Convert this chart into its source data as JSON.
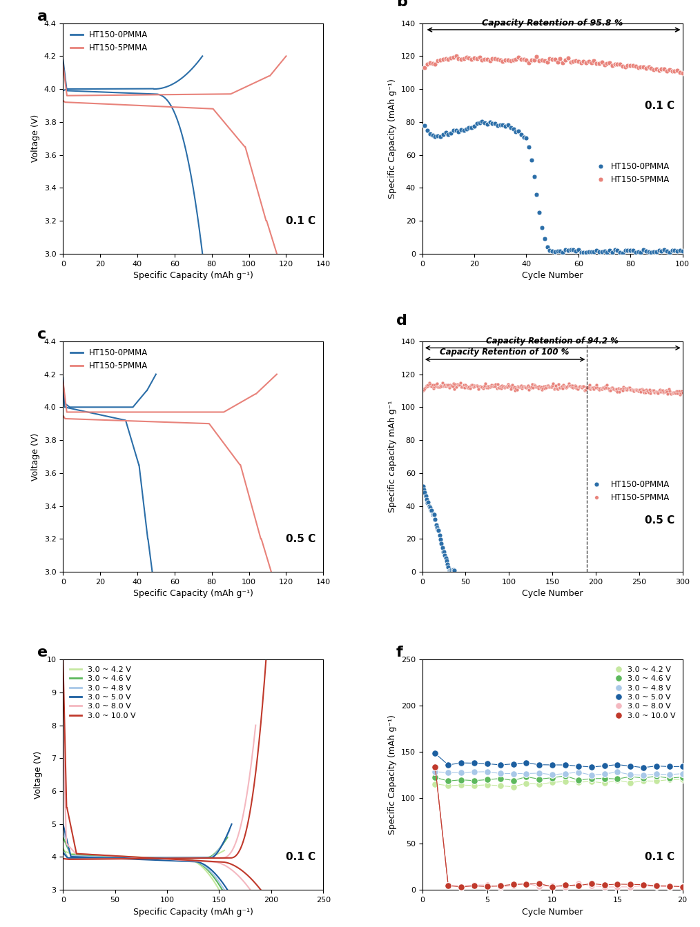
{
  "panel_a": {
    "title": "a",
    "xlabel": "Specific Capacity (mAh g⁻¹)",
    "ylabel": "Voltage (V)",
    "annotation": "0.1 C",
    "ylim": [
      3.0,
      4.4
    ],
    "xlim": [
      0,
      140
    ],
    "xticks": [
      0,
      20,
      40,
      60,
      80,
      100,
      120,
      140
    ],
    "yticks": [
      3.0,
      3.2,
      3.4,
      3.6,
      3.8,
      4.0,
      4.2,
      4.4
    ],
    "blue_color": "#2B6EA8",
    "pink_color": "#E8827A"
  },
  "panel_b": {
    "title": "b",
    "xlabel": "Cycle Number",
    "ylabel": "Specific Capacity (mAh g⁻¹)",
    "annotation": "0.1 C",
    "annotation2": "Capacity Retention of 95.8 %",
    "ylim": [
      0,
      140
    ],
    "xlim": [
      0,
      100
    ],
    "xticks": [
      0,
      20,
      40,
      60,
      80,
      100
    ],
    "yticks": [
      0,
      20,
      40,
      60,
      80,
      100,
      120,
      140
    ],
    "blue_color": "#2B6EA8",
    "pink_color": "#E8827A"
  },
  "panel_c": {
    "title": "c",
    "xlabel": "Specific Capacity (mAh g⁻¹)",
    "ylabel": "Voltage (V)",
    "annotation": "0.5 C",
    "ylim": [
      3.0,
      4.4
    ],
    "xlim": [
      0,
      140
    ],
    "xticks": [
      0,
      20,
      40,
      60,
      80,
      100,
      120,
      140
    ],
    "yticks": [
      3.0,
      3.2,
      3.4,
      3.6,
      3.8,
      4.0,
      4.2,
      4.4
    ],
    "blue_color": "#2B6EA8",
    "pink_color": "#E8827A"
  },
  "panel_d": {
    "title": "d",
    "xlabel": "Cycle Number",
    "ylabel": "Specific capacity mAh g⁻¹",
    "annotation": "0.5 C",
    "annotation2": "Capacity Retention of 94.2 %",
    "annotation3": "Capacity Retention of 100 %",
    "ylim": [
      0,
      140
    ],
    "xlim": [
      0,
      300
    ],
    "xticks": [
      0,
      50,
      100,
      150,
      200,
      250,
      300
    ],
    "yticks": [
      0,
      20,
      40,
      60,
      80,
      100,
      120,
      140
    ],
    "blue_color": "#2B6EA8",
    "pink_color": "#E8827A",
    "vline_x": 190
  },
  "panel_e": {
    "title": "e",
    "xlabel": "Specific Capacity (mAh g⁻¹)",
    "ylabel": "Voltage (V)",
    "annotation": "0.1 C",
    "ylim": [
      3.0,
      10.0
    ],
    "xlim": [
      0,
      250
    ],
    "xticks": [
      0,
      50,
      100,
      150,
      200,
      250
    ],
    "yticks": [
      3,
      4,
      5,
      6,
      7,
      8,
      9,
      10
    ],
    "colors": [
      "#C5E8A0",
      "#5CB85C",
      "#A8C8E8",
      "#1C5FA0",
      "#F4B8C0",
      "#C0392B"
    ],
    "labels": [
      "3.0 ~ 4.2 V",
      "3.0 ~ 4.6 V",
      "3.0 ~ 4.8 V",
      "3.0 ~ 5.0 V",
      "3.0 ~ 8.0 V",
      "3.0 ~ 10.0 V"
    ],
    "caps_charge": [
      155,
      158,
      160,
      162,
      185,
      195
    ],
    "caps_discharge": [
      150,
      153,
      155,
      158,
      182,
      192
    ],
    "upper_v": [
      4.2,
      4.6,
      4.8,
      5.0,
      8.0,
      10.0
    ]
  },
  "panel_f": {
    "title": "f",
    "xlabel": "Cycle Number",
    "ylabel": "Specific Capacity (mAh g⁻¹)",
    "annotation": "0.1 C",
    "ylim": [
      0,
      250
    ],
    "xlim": [
      0,
      20
    ],
    "xticks": [
      0,
      5,
      10,
      15,
      20
    ],
    "yticks": [
      0,
      50,
      100,
      150,
      200,
      250
    ],
    "colors": [
      "#C5E8A0",
      "#5CB85C",
      "#A8C8E8",
      "#1C5FA0",
      "#F4B8C0",
      "#C0392B"
    ],
    "labels": [
      "3.0 ~ 4.2 V",
      "3.0 ~ 4.6 V",
      "3.0 ~ 4.8 V",
      "3.0 ~ 5.0 V",
      "3.0 ~ 8.0 V",
      "3.0 ~ 10.0 V"
    ],
    "y_stable": [
      115,
      122,
      128,
      135,
      5,
      5
    ],
    "y_first": [
      115,
      123,
      130,
      148,
      135,
      133
    ]
  }
}
